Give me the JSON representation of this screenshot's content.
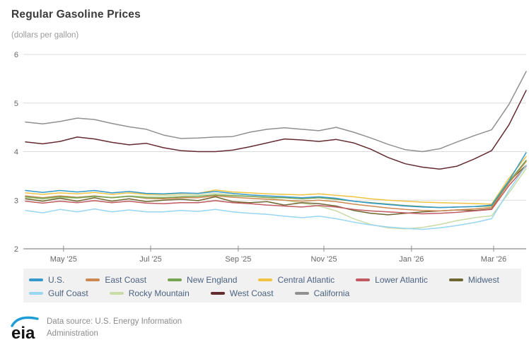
{
  "header": {
    "title": "Regular Gasoline Prices",
    "subtitle": "(dollars per gallon)"
  },
  "chart_data": {
    "type": "line",
    "title": "Regular Gasoline Prices",
    "ylabel": "(dollars per gallon)",
    "xlabel": "",
    "ylim": [
      2,
      6
    ],
    "y_ticks": [
      2,
      3,
      4,
      5,
      6
    ],
    "grid": "horizontal",
    "legend_position": "bottom",
    "x_ticks": [
      {
        "label": "May '25",
        "f": 0.076
      },
      {
        "label": "Jul '25",
        "f": 0.25
      },
      {
        "label": "Sep '25",
        "f": 0.425
      },
      {
        "label": "Nov '25",
        "f": 0.596
      },
      {
        "label": "Jan '26",
        "f": 0.771
      },
      {
        "label": "Mar '26",
        "f": 0.935
      }
    ],
    "x_range_note": "weekly data, Apr 2025 - Mar 2026",
    "series": [
      {
        "name": "U.S.",
        "color": "#3399cc",
        "values": [
          3.2,
          3.16,
          3.2,
          3.17,
          3.2,
          3.15,
          3.18,
          3.14,
          3.13,
          3.15,
          3.14,
          3.18,
          3.14,
          3.11,
          3.09,
          3.07,
          3.05,
          3.07,
          3.04,
          2.98,
          2.94,
          2.91,
          2.88,
          2.86,
          2.85,
          2.86,
          2.87,
          2.9,
          3.4,
          3.98
        ]
      },
      {
        "name": "East Coast",
        "color": "#cc8850",
        "values": [
          3.09,
          3.05,
          3.09,
          3.06,
          3.09,
          3.05,
          3.08,
          3.04,
          3.03,
          3.05,
          3.05,
          3.09,
          3.06,
          3.04,
          3.02,
          3.0,
          2.98,
          3.0,
          2.97,
          2.92,
          2.88,
          2.84,
          2.81,
          2.79,
          2.78,
          2.8,
          2.82,
          2.85,
          3.35,
          3.8
        ]
      },
      {
        "name": "New England",
        "color": "#77a352",
        "values": [
          3.07,
          3.04,
          3.07,
          3.05,
          3.08,
          3.05,
          3.08,
          3.05,
          3.05,
          3.07,
          3.08,
          3.11,
          3.09,
          3.08,
          3.06,
          3.05,
          3.03,
          3.05,
          3.02,
          2.98,
          2.95,
          2.92,
          2.89,
          2.87,
          2.85,
          2.86,
          2.87,
          2.88,
          3.38,
          3.82
        ]
      },
      {
        "name": "Central Atlantic",
        "color": "#f0c440",
        "values": [
          3.15,
          3.12,
          3.15,
          3.13,
          3.16,
          3.12,
          3.15,
          3.12,
          3.12,
          3.14,
          3.14,
          3.21,
          3.17,
          3.15,
          3.13,
          3.12,
          3.11,
          3.13,
          3.1,
          3.07,
          3.03,
          3.0,
          2.98,
          2.96,
          2.95,
          2.94,
          2.93,
          2.92,
          3.45,
          3.9
        ]
      },
      {
        "name": "Lower Atlantic",
        "color": "#c05a60",
        "values": [
          2.98,
          2.94,
          2.98,
          2.95,
          2.99,
          2.95,
          2.98,
          2.94,
          2.93,
          2.95,
          2.95,
          2.99,
          2.95,
          2.93,
          2.9,
          2.88,
          2.86,
          2.89,
          2.86,
          2.81,
          2.78,
          2.76,
          2.74,
          2.72,
          2.73,
          2.75,
          2.78,
          2.81,
          3.3,
          3.7
        ]
      },
      {
        "name": "Midwest",
        "color": "#6e6530",
        "values": [
          3.03,
          2.98,
          3.04,
          2.98,
          3.05,
          2.98,
          3.03,
          2.97,
          3.0,
          3.02,
          2.99,
          3.07,
          2.97,
          2.95,
          2.97,
          2.9,
          2.95,
          2.93,
          2.88,
          2.79,
          2.73,
          2.7,
          2.73,
          2.76,
          2.78,
          2.8,
          2.79,
          2.82,
          3.38,
          3.72
        ]
      },
      {
        "name": "Gulf Coast",
        "color": "#99d6f2",
        "values": [
          2.79,
          2.74,
          2.81,
          2.76,
          2.82,
          2.76,
          2.8,
          2.76,
          2.76,
          2.79,
          2.77,
          2.81,
          2.76,
          2.73,
          2.71,
          2.67,
          2.64,
          2.67,
          2.62,
          2.55,
          2.49,
          2.45,
          2.42,
          2.4,
          2.43,
          2.48,
          2.54,
          2.62,
          3.2,
          3.72
        ]
      },
      {
        "name": "Rocky Mountain",
        "color": "#c9dba6",
        "values": [
          3.05,
          3.02,
          3.05,
          3.04,
          3.07,
          3.06,
          3.09,
          3.08,
          3.09,
          3.11,
          3.11,
          3.14,
          3.11,
          3.08,
          3.05,
          3.0,
          2.94,
          2.88,
          2.78,
          2.62,
          2.5,
          2.43,
          2.41,
          2.44,
          2.5,
          2.58,
          2.64,
          2.68,
          3.15,
          3.65
        ]
      },
      {
        "name": "West Coast",
        "color": "#632b2f",
        "values": [
          4.2,
          4.16,
          4.21,
          4.3,
          4.26,
          4.19,
          4.14,
          4.17,
          4.08,
          4.02,
          4.0,
          4.0,
          4.03,
          4.1,
          4.18,
          4.26,
          4.24,
          4.21,
          4.25,
          4.18,
          4.05,
          3.88,
          3.75,
          3.68,
          3.64,
          3.7,
          3.85,
          4.02,
          4.55,
          5.26
        ]
      },
      {
        "name": "California",
        "color": "#909090",
        "values": [
          4.61,
          4.57,
          4.62,
          4.69,
          4.66,
          4.58,
          4.51,
          4.46,
          4.34,
          4.27,
          4.28,
          4.3,
          4.31,
          4.4,
          4.46,
          4.49,
          4.46,
          4.43,
          4.5,
          4.4,
          4.28,
          4.15,
          4.04,
          4.0,
          4.06,
          4.2,
          4.33,
          4.45,
          4.97,
          5.65
        ]
      }
    ]
  },
  "colors": {
    "grid": "#dcdcdc",
    "axis": "#8c8c8c",
    "tick_label": "#666666",
    "legend_bg": "#f1f1f2",
    "legend_text": "#4b6280",
    "logo_blue": "#1e9cd7"
  },
  "footer": {
    "logo_text": "eia",
    "source_line1": "Data source: U.S. Energy Information",
    "source_line2": "Administration"
  }
}
